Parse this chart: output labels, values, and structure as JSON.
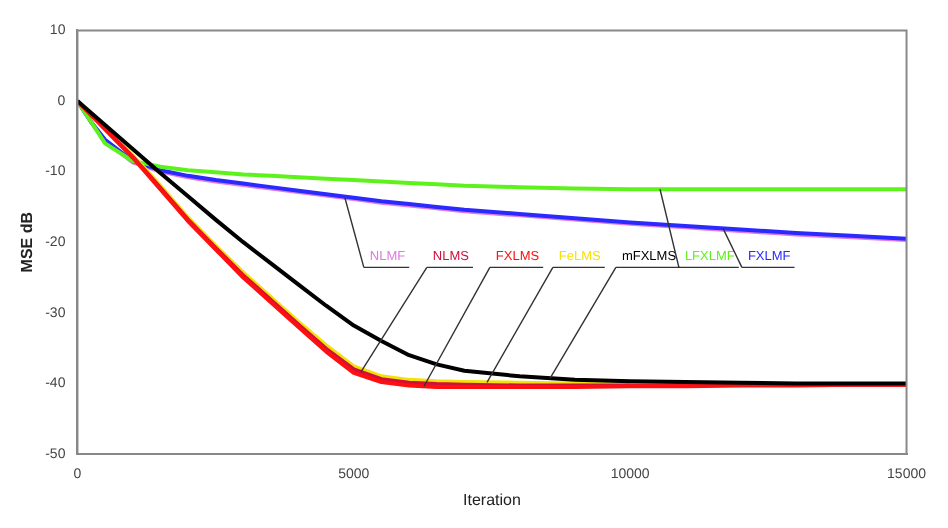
{
  "chart_data": {
    "type": "line",
    "xlabel": "Iteration",
    "ylabel": "MSE dB",
    "x": [
      0,
      250,
      500,
      1000,
      1500,
      2000,
      2500,
      3000,
      3500,
      4000,
      4500,
      5000,
      5500,
      6000,
      6500,
      7000,
      8000,
      9000,
      10000,
      11000,
      12000,
      13000,
      14000,
      15000
    ],
    "series": [
      {
        "name": "NLMF",
        "color": "#e07ae0",
        "values": [
          0,
          -3,
          -5.6,
          -8.7,
          -10,
          -10.8,
          -11.4,
          -11.9,
          -12.4,
          -12.9,
          -13.4,
          -13.9,
          -14.4,
          -14.8,
          -15.2,
          -15.6,
          -16.2,
          -16.8,
          -17.4,
          -17.9,
          -18.4,
          -18.9,
          -19.3,
          -19.7
        ]
      },
      {
        "name": "FXLMF",
        "color": "#2a2aff",
        "values": [
          0,
          -3,
          -5.5,
          -8.5,
          -9.8,
          -10.6,
          -11.2,
          -11.7,
          -12.2,
          -12.7,
          -13.2,
          -13.7,
          -14.2,
          -14.6,
          -15,
          -15.4,
          -16,
          -16.6,
          -17.2,
          -17.7,
          -18.2,
          -18.7,
          -19.1,
          -19.5
        ]
      },
      {
        "name": "LFXLMF",
        "color": "#5ef21c",
        "values": [
          0,
          -3,
          -6,
          -8.5,
          -9.3,
          -9.8,
          -10.1,
          -10.4,
          -10.6,
          -10.8,
          -11,
          -11.2,
          -11.4,
          -11.6,
          -11.8,
          -12,
          -12.2,
          -12.4,
          -12.5,
          -12.5,
          -12.5,
          -12.5,
          -12.5,
          -12.5
        ]
      },
      {
        "name": "FeLMS",
        "color": "#f5e10a",
        "values": [
          null,
          null,
          -3.8,
          -7.7,
          -12,
          -16.5,
          -20.5,
          -24.3,
          -27.8,
          -31.3,
          -34.6,
          -37.6,
          -39,
          -39.5,
          -39.7,
          -39.8,
          -39.9,
          -40,
          -40,
          null,
          null,
          null,
          null,
          null
        ]
      },
      {
        "name": "NLMS",
        "color": "#d0103a",
        "values": [
          0,
          -2,
          -3.9,
          -7.9,
          -12.3,
          -16.8,
          -20.8,
          -24.7,
          -28.2,
          -31.7,
          -35.1,
          -38,
          -39.4,
          -39.9,
          -40.1,
          -40.2,
          -40.3,
          -40.3,
          -40.3,
          -40.3,
          -40.2,
          -40.2,
          -40.2,
          -40.2
        ]
      },
      {
        "name": "FXLMS",
        "color": "#ff1010",
        "values": [
          0,
          -2,
          -4,
          -8,
          -12.5,
          -17,
          -21,
          -25,
          -28.5,
          -32,
          -35.5,
          -38.5,
          -39.8,
          -40.3,
          -40.5,
          -40.5,
          -40.5,
          -40.5,
          -40.4,
          -40.4,
          -40.3,
          -40.3,
          -40.2,
          -40.2
        ]
      },
      {
        "name": "mFXLMS",
        "color": "#000000",
        "values": [
          0,
          -1.7,
          -3.4,
          -6.8,
          -10.2,
          -13.5,
          -16.8,
          -20,
          -23,
          -26,
          -29,
          -31.8,
          -34,
          -36,
          -37.3,
          -38.2,
          -39,
          -39.5,
          -39.7,
          -39.8,
          -39.9,
          -40,
          -40,
          -40
        ]
      }
    ],
    "xlim": [
      0,
      15000
    ],
    "xticks": [
      0,
      5000,
      10000,
      15000
    ],
    "ylim": [
      -50,
      10
    ],
    "yticks": [
      -50,
      -40,
      -30,
      -20,
      -10,
      0,
      10
    ],
    "grid": false,
    "legend": false,
    "marker": "none",
    "line_style": "solid"
  }
}
